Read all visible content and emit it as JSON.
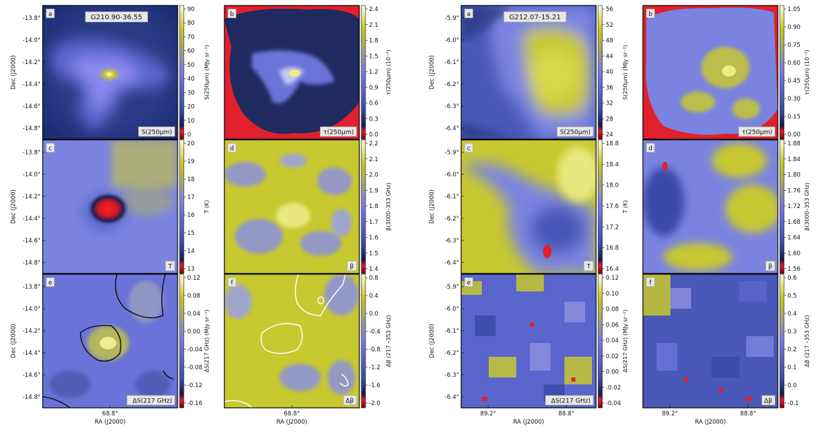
{
  "chart_data": {
    "type": "heatmap",
    "figures": [
      {
        "field": "G210.90-36.55",
        "ylabel": "Dec (J2000)",
        "xlabel": "RA (J2000)",
        "dec_ticks": [
          "-13.8°",
          "-14.0°",
          "-14.2°",
          "-14.4°",
          "-14.6°",
          "-14.8°"
        ],
        "ra_ticks": [
          "68.8°"
        ],
        "panels": [
          {
            "letter": "a",
            "tag": "S(250μm)",
            "cbar_label": "S(250μm) (MJy sr⁻¹)",
            "cbar_ticks": [
              "90",
              "80",
              "70",
              "60",
              "50",
              "40",
              "30",
              "20",
              "10",
              "0"
            ]
          },
          {
            "letter": "b",
            "tag": "τ(250μm)",
            "cbar_label": "τ(250μm) (10⁻³)",
            "cbar_ticks": [
              "2.4",
              "2.1",
              "1.8",
              "1.5",
              "1.2",
              "0.9",
              "0.6",
              "0.3",
              "0.0"
            ]
          },
          {
            "letter": "c",
            "tag": "T",
            "cbar_label": "T (K)",
            "cbar_ticks": [
              "20",
              "19",
              "18",
              "17",
              "16",
              "15",
              "14",
              "13"
            ]
          },
          {
            "letter": "d",
            "tag": "β",
            "cbar_label": "β(3000–353 GHz)",
            "cbar_ticks": [
              "2.2",
              "2.1",
              "2.0",
              "1.9",
              "1.8",
              "1.7",
              "1.6",
              "1.5",
              "1.4"
            ]
          },
          {
            "letter": "e",
            "tag": "ΔS(217 GHz)",
            "cbar_label": "ΔS(217 GHz) (MJy sr⁻¹)",
            "cbar_ticks": [
              "0.12",
              "0.08",
              "0.04",
              "0.00",
              "-0.04",
              "-0.08",
              "-0.12",
              "-0.16"
            ]
          },
          {
            "letter": "f",
            "tag": "Δβ",
            "cbar_label": "Δβ (217 –353 GHz)",
            "cbar_ticks": [
              "0.8",
              "0.4",
              "0.0",
              "-0.4",
              "-0.8",
              "-1.2",
              "-1.6",
              "-2.0"
            ]
          }
        ]
      },
      {
        "field": "G212.07-15.21",
        "ylabel": "Dec (J2000)",
        "xlabel": "RA (J2000)",
        "dec_ticks": [
          "-5.9°",
          "-6.0°",
          "-6.1°",
          "-6.2°",
          "-6.3°",
          "-6.4°"
        ],
        "ra_ticks": [
          "89.2°",
          "88.8°"
        ],
        "panels": [
          {
            "letter": "a",
            "tag": "S(250μm)",
            "cbar_label": "S(250μm) (MJy sr⁻¹)",
            "cbar_ticks": [
              "56",
              "52",
              "48",
              "44",
              "40",
              "36",
              "32",
              "28",
              "24"
            ]
          },
          {
            "letter": "b",
            "tag": "τ(250μm)",
            "cbar_label": "τ(250μm) (10⁻³)",
            "cbar_ticks": [
              "1.05",
              "0.90",
              "0.75",
              "0.60",
              "0.45",
              "0.30",
              "0.15",
              "0.00"
            ]
          },
          {
            "letter": "c",
            "tag": "T",
            "cbar_label": "T (K)",
            "cbar_ticks": [
              "18.8",
              "18.4",
              "18.0",
              "17.6",
              "17.2",
              "16.8",
              "16.4"
            ]
          },
          {
            "letter": "d",
            "tag": "β",
            "cbar_label": "β(3000–353 GHz)",
            "cbar_ticks": [
              "1.88",
              "1.84",
              "1.80",
              "1.76",
              "1.72",
              "1.68",
              "1.64",
              "1.60",
              "1.56"
            ]
          },
          {
            "letter": "e",
            "tag": "ΔS(217 GHz)",
            "cbar_label": "ΔS(217 GHz) (MJy sr⁻¹)",
            "cbar_ticks": [
              "0.12",
              "0.10",
              "0.08",
              "0.06",
              "0.04",
              "0.02",
              "0.00",
              "-0.02",
              "-0.04"
            ]
          },
          {
            "letter": "f",
            "tag": "Δβ",
            "cbar_label": "Δβ (217 –353 GHz)",
            "cbar_ticks": [
              "0.6",
              "0.5",
              "0.4",
              "0.3",
              "0.2",
              "0.1",
              "0.0",
              "-0.1"
            ]
          }
        ]
      }
    ],
    "colormap": [
      "#ffffe0",
      "#c8c820",
      "#7a7ae8",
      "#3a4ea8",
      "#1a1a4a",
      "#e0202c"
    ]
  }
}
